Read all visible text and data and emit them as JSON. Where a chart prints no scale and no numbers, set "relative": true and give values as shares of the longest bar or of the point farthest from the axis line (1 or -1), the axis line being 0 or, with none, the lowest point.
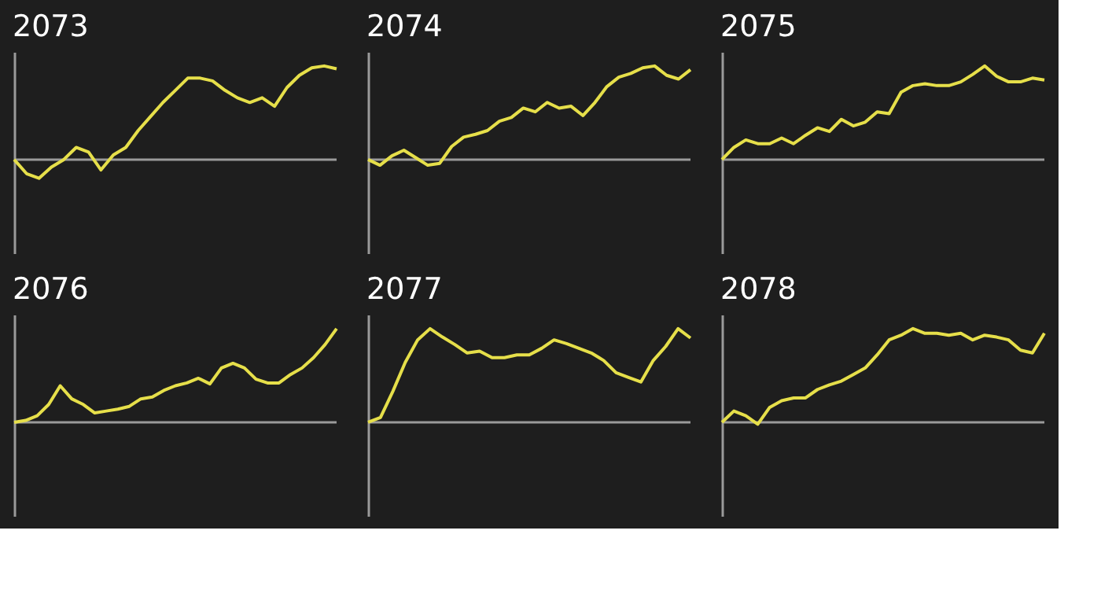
{
  "chart_data": [
    {
      "type": "line",
      "title": "2073",
      "relative": true,
      "categories": [
        null,
        null,
        null,
        null,
        null,
        null,
        null,
        null,
        null,
        null,
        null,
        null,
        null,
        null,
        null,
        null,
        null,
        null,
        null,
        null,
        null,
        null,
        null,
        null,
        null,
        null,
        null
      ],
      "series": [
        {
          "color": "#e6df4a",
          "values": [
            0,
            -0.15,
            -0.2,
            -0.08,
            0,
            0.13,
            0.08,
            -0.11,
            0.05,
            0.13,
            0.31,
            0.46,
            0.61,
            0.74,
            0.87,
            0.87,
            0.84,
            0.74,
            0.66,
            0.61,
            0.66,
            0.57,
            0.77,
            0.9,
            0.98,
            1,
            0.97
          ]
        }
      ]
    },
    {
      "type": "line",
      "title": "2074",
      "relative": true,
      "categories": [
        null,
        null,
        null,
        null,
        null,
        null,
        null,
        null,
        null,
        null,
        null,
        null,
        null,
        null,
        null,
        null,
        null,
        null,
        null,
        null,
        null,
        null,
        null,
        null,
        null,
        null,
        null,
        null
      ],
      "series": [
        {
          "color": "#e6df4a",
          "values": [
            0,
            -0.06,
            0.04,
            0.1,
            0.02,
            -0.06,
            -0.04,
            0.14,
            0.24,
            0.27,
            0.31,
            0.41,
            0.45,
            0.55,
            0.51,
            0.61,
            0.55,
            0.57,
            0.47,
            0.61,
            0.78,
            0.88,
            0.92,
            0.98,
            1,
            0.9,
            0.86,
            0.96
          ]
        }
      ]
    },
    {
      "type": "line",
      "title": "2075",
      "relative": true,
      "categories": [
        null,
        null,
        null,
        null,
        null,
        null,
        null,
        null,
        null,
        null,
        null,
        null,
        null,
        null,
        null,
        null,
        null,
        null,
        null,
        null,
        null,
        null,
        null,
        null,
        null,
        null,
        null,
        null
      ],
      "series": [
        {
          "color": "#e6df4a",
          "values": [
            0,
            0.13,
            0.21,
            0.17,
            0.17,
            0.23,
            0.17,
            0.26,
            0.34,
            0.3,
            0.43,
            0.36,
            0.4,
            0.51,
            0.49,
            0.72,
            0.79,
            0.81,
            0.79,
            0.79,
            0.83,
            0.91,
            1,
            0.89,
            0.83,
            0.83,
            0.87,
            0.85
          ]
        }
      ]
    },
    {
      "type": "line",
      "title": "2076",
      "relative": true,
      "categories": [
        null,
        null,
        null,
        null,
        null,
        null,
        null,
        null,
        null,
        null,
        null,
        null,
        null,
        null,
        null,
        null,
        null,
        null,
        null,
        null,
        null,
        null,
        null,
        null,
        null,
        null,
        null,
        null,
        null
      ],
      "series": [
        {
          "color": "#e6df4a",
          "values": [
            0,
            0.02,
            0.07,
            0.19,
            0.39,
            0.25,
            0.19,
            0.1,
            0.12,
            0.14,
            0.17,
            0.25,
            0.27,
            0.34,
            0.39,
            0.42,
            0.47,
            0.41,
            0.58,
            0.63,
            0.58,
            0.46,
            0.42,
            0.42,
            0.51,
            0.58,
            0.69,
            0.83,
            1
          ]
        }
      ]
    },
    {
      "type": "line",
      "title": "2077",
      "relative": true,
      "categories": [
        null,
        null,
        null,
        null,
        null,
        null,
        null,
        null,
        null,
        null,
        null,
        null,
        null,
        null,
        null,
        null,
        null,
        null,
        null,
        null,
        null,
        null,
        null,
        null,
        null,
        null,
        null
      ],
      "series": [
        {
          "color": "#e6df4a",
          "values": [
            0,
            0.05,
            0.33,
            0.64,
            0.88,
            1,
            0.91,
            0.83,
            0.74,
            0.76,
            0.69,
            0.69,
            0.72,
            0.72,
            0.79,
            0.88,
            0.84,
            0.79,
            0.74,
            0.66,
            0.53,
            0.48,
            0.43,
            0.66,
            0.81,
            1,
            0.9
          ]
        }
      ]
    },
    {
      "type": "line",
      "title": "2078",
      "relative": true,
      "categories": [
        null,
        null,
        null,
        null,
        null,
        null,
        null,
        null,
        null,
        null,
        null,
        null,
        null,
        null,
        null,
        null,
        null,
        null,
        null,
        null,
        null,
        null,
        null,
        null,
        null,
        null,
        null,
        null
      ],
      "series": [
        {
          "color": "#e6df4a",
          "values": [
            0,
            0.12,
            0.07,
            -0.02,
            0.16,
            0.23,
            0.26,
            0.26,
            0.35,
            0.4,
            0.44,
            0.51,
            0.58,
            0.72,
            0.88,
            0.93,
            1,
            0.95,
            0.95,
            0.93,
            0.95,
            0.88,
            0.93,
            0.91,
            0.88,
            0.77,
            0.74,
            0.95
          ]
        }
      ]
    }
  ]
}
